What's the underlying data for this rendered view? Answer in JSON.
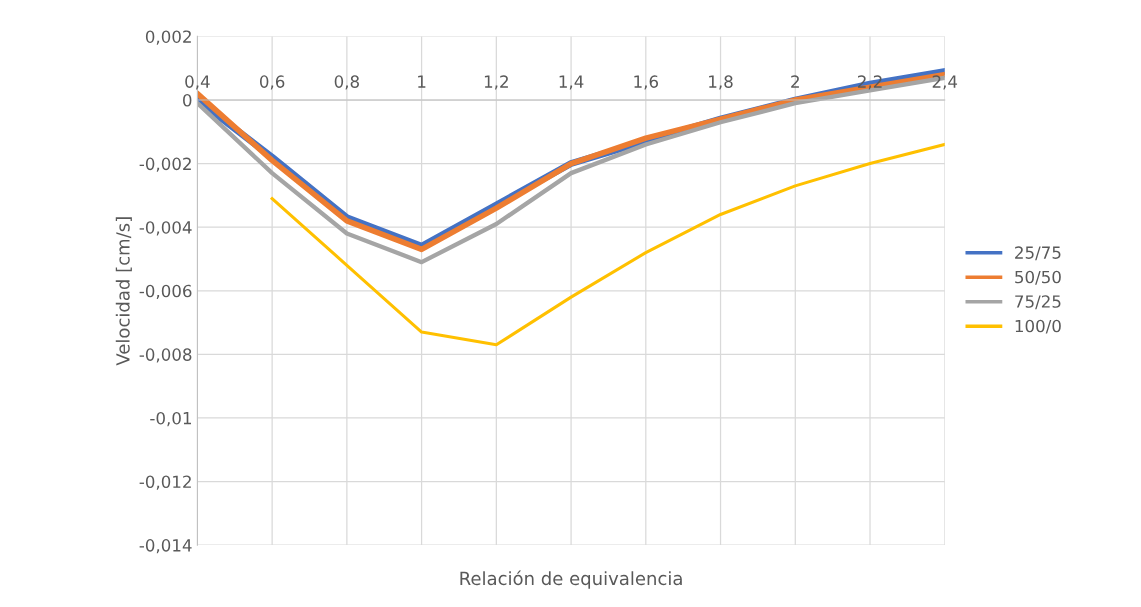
{
  "chart_data": {
    "type": "line",
    "xlabel": "Relación de equivalencia",
    "ylabel": "Velocidad [cm/s]",
    "xlim": [
      0.4,
      2.4
    ],
    "ylim": [
      -0.014,
      0.002
    ],
    "xticks": [
      {
        "value": 0.4,
        "label": "0,4"
      },
      {
        "value": 0.6,
        "label": "0,6"
      },
      {
        "value": 0.8,
        "label": "0,8"
      },
      1,
      {
        "value": 1.2,
        "label": "1,2"
      },
      {
        "value": 1.4,
        "label": "1,4"
      },
      {
        "value": 1.6,
        "label": "1,6"
      },
      {
        "value": 1.8,
        "label": "1,8"
      },
      2,
      {
        "value": 2.2,
        "label": "2,2"
      },
      {
        "value": 2.4,
        "label": "2,4"
      }
    ],
    "yticks": [
      {
        "value": -0.014,
        "label": "-0,014"
      },
      {
        "value": -0.012,
        "label": "-0,012"
      },
      {
        "value": -0.01,
        "label": "-0,01"
      },
      {
        "value": -0.008,
        "label": "-0,008"
      },
      {
        "value": -0.006,
        "label": "-0,006"
      },
      {
        "value": -0.004,
        "label": "-0,004"
      },
      {
        "value": -0.002,
        "label": "-0,002"
      },
      0,
      {
        "value": 0.002,
        "label": "0,002"
      }
    ],
    "grid": true,
    "legend": "right",
    "marker": "none",
    "line_style": "solid",
    "series": [
      {
        "name": "25/75",
        "color": "#4472c4",
        "x": [
          0.4,
          0.6,
          0.8,
          1.0,
          1.2,
          1.4,
          1.6,
          1.8,
          2.0,
          2.2,
          2.4
        ],
        "values": [
          0.0,
          -0.0018,
          -0.0037,
          -0.0046,
          -0.0033,
          -0.002,
          -0.0013,
          -0.0006,
          0.0,
          0.0005,
          0.0009
        ]
      },
      {
        "name": "50/50",
        "color": "#ed7d31",
        "x": [
          0.4,
          0.6,
          0.8,
          1.0,
          1.2,
          1.4,
          1.6,
          1.8,
          2.0,
          2.2,
          2.4
        ],
        "values": [
          0.0002,
          -0.0019,
          -0.0038,
          -0.0047,
          -0.0034,
          -0.002,
          -0.0012,
          -0.0006,
          0.0,
          0.0004,
          0.0008
        ]
      },
      {
        "name": "75/25",
        "color": "#a5a5a5",
        "x": [
          0.4,
          0.6,
          0.8,
          1.0,
          1.2,
          1.4,
          1.6,
          1.8,
          2.0,
          2.2,
          2.4
        ],
        "values": [
          -0.0001,
          -0.0023,
          -0.0042,
          -0.0051,
          -0.0039,
          -0.0023,
          -0.0014,
          -0.0007,
          -0.0001,
          0.0003,
          0.0007
        ]
      },
      {
        "name": "100/0",
        "color": "#ffc000",
        "x": [
          0.6,
          0.8,
          1.0,
          1.2,
          1.4,
          1.6,
          1.8,
          2.0,
          2.2,
          2.4
        ],
        "values": [
          -0.0031,
          -0.0052,
          -0.0073,
          -0.0077,
          -0.0062,
          -0.0048,
          -0.0036,
          -0.0027,
          -0.002,
          -0.0014
        ]
      }
    ]
  }
}
